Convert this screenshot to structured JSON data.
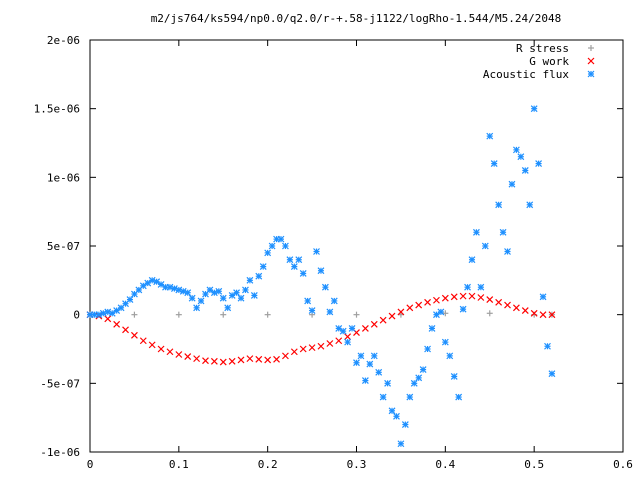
{
  "chart_data": {
    "type": "scatter",
    "title": "m2/js764/ks594/np0.0/q2.0/r-+.58-j1122/logRho-1.544/M5.24/2048",
    "xlabel": "",
    "ylabel": "",
    "xlim": [
      0,
      0.6
    ],
    "ylim": [
      -1e-06,
      2e-06
    ],
    "x_ticks": [
      "0",
      "0.1",
      "0.2",
      "0.3",
      "0.4",
      "0.5",
      "0.6"
    ],
    "y_ticks": [
      "-1e-06",
      "-5e-07",
      "0",
      "5e-07",
      "1e-06",
      "1.5e-06",
      "2e-06"
    ],
    "legend_position": "top-right",
    "grid": false,
    "series": [
      {
        "name": "R stress",
        "marker": "plus",
        "color": "#a0a0a0",
        "x": [
          0.0,
          0.05,
          0.1,
          0.15,
          0.2,
          0.25,
          0.3,
          0.35,
          0.4,
          0.45,
          0.5,
          0.52
        ],
        "y": [
          0,
          0,
          0,
          0,
          0,
          0,
          0,
          0,
          1e-08,
          1e-08,
          0,
          0
        ]
      },
      {
        "name": "G work",
        "marker": "cross",
        "color": "#ff0000",
        "x": [
          0.0,
          0.01,
          0.02,
          0.03,
          0.04,
          0.05,
          0.06,
          0.07,
          0.08,
          0.09,
          0.1,
          0.11,
          0.12,
          0.13,
          0.14,
          0.15,
          0.16,
          0.17,
          0.18,
          0.19,
          0.2,
          0.21,
          0.22,
          0.23,
          0.24,
          0.25,
          0.26,
          0.27,
          0.28,
          0.29,
          0.3,
          0.31,
          0.32,
          0.33,
          0.34,
          0.35,
          0.36,
          0.37,
          0.38,
          0.39,
          0.4,
          0.41,
          0.42,
          0.43,
          0.44,
          0.45,
          0.46,
          0.47,
          0.48,
          0.49,
          0.5,
          0.51,
          0.52
        ],
        "y": [
          0,
          -1e-08,
          -3e-08,
          -7e-08,
          -1.1e-07,
          -1.5e-07,
          -1.9e-07,
          -2.2e-07,
          -2.5e-07,
          -2.7e-07,
          -2.9e-07,
          -3.05e-07,
          -3.2e-07,
          -3.35e-07,
          -3.4e-07,
          -3.45e-07,
          -3.4e-07,
          -3.3e-07,
          -3.2e-07,
          -3.25e-07,
          -3.3e-07,
          -3.25e-07,
          -3e-07,
          -2.7e-07,
          -2.5e-07,
          -2.4e-07,
          -2.3e-07,
          -2.1e-07,
          -1.9e-07,
          -1.6e-07,
          -1.3e-07,
          -1e-07,
          -7e-08,
          -4e-08,
          -1e-08,
          2e-08,
          5e-08,
          7e-08,
          9e-08,
          1.05e-07,
          1.2e-07,
          1.3e-07,
          1.35e-07,
          1.35e-07,
          1.25e-07,
          1.1e-07,
          9e-08,
          7e-08,
          5e-08,
          3e-08,
          1e-08,
          0,
          0
        ]
      },
      {
        "name": "Acoustic flux",
        "marker": "star",
        "color": "#1e90ff",
        "x": [
          0.0,
          0.005,
          0.01,
          0.015,
          0.02,
          0.025,
          0.03,
          0.035,
          0.04,
          0.045,
          0.05,
          0.055,
          0.06,
          0.065,
          0.07,
          0.075,
          0.08,
          0.085,
          0.09,
          0.095,
          0.1,
          0.105,
          0.11,
          0.115,
          0.12,
          0.125,
          0.13,
          0.135,
          0.14,
          0.145,
          0.15,
          0.155,
          0.16,
          0.165,
          0.17,
          0.175,
          0.18,
          0.185,
          0.19,
          0.195,
          0.2,
          0.205,
          0.21,
          0.215,
          0.22,
          0.225,
          0.23,
          0.235,
          0.24,
          0.245,
          0.25,
          0.255,
          0.26,
          0.265,
          0.27,
          0.275,
          0.28,
          0.285,
          0.29,
          0.295,
          0.3,
          0.305,
          0.31,
          0.315,
          0.32,
          0.325,
          0.33,
          0.335,
          0.34,
          0.345,
          0.35,
          0.355,
          0.36,
          0.365,
          0.37,
          0.375,
          0.38,
          0.385,
          0.39,
          0.395,
          0.4,
          0.405,
          0.41,
          0.415,
          0.42,
          0.425,
          0.43,
          0.435,
          0.44,
          0.445,
          0.45,
          0.455,
          0.46,
          0.465,
          0.47,
          0.475,
          0.48,
          0.485,
          0.49,
          0.495,
          0.5,
          0.505,
          0.51,
          0.515,
          0.52
        ],
        "y": [
          0,
          0,
          0,
          1e-08,
          2e-08,
          1e-08,
          3e-08,
          5e-08,
          8e-08,
          1.1e-07,
          1.5e-07,
          1.8e-07,
          2.1e-07,
          2.3e-07,
          2.5e-07,
          2.4e-07,
          2.2e-07,
          2e-07,
          2e-07,
          1.9e-07,
          1.8e-07,
          1.7e-07,
          1.6e-07,
          1.2e-07,
          5e-08,
          1e-07,
          1.5e-07,
          1.8e-07,
          1.6e-07,
          1.7e-07,
          1.2e-07,
          5e-08,
          1.4e-07,
          1.6e-07,
          1.2e-07,
          1.8e-07,
          2.5e-07,
          1.4e-07,
          2.8e-07,
          3.5e-07,
          4.5e-07,
          5e-07,
          5.5e-07,
          5.5e-07,
          5e-07,
          4e-07,
          3.5e-07,
          4e-07,
          3e-07,
          1e-07,
          3e-08,
          4.6e-07,
          3.2e-07,
          2e-07,
          2e-08,
          1e-07,
          -1e-07,
          -1.2e-07,
          -2e-07,
          -1e-07,
          -3.5e-07,
          -3e-07,
          -4.8e-07,
          -3.6e-07,
          -3e-07,
          -4.2e-07,
          -6e-07,
          -5e-07,
          -7e-07,
          -7.4e-07,
          -9.4e-07,
          -8e-07,
          -6e-07,
          -5e-07,
          -4.6e-07,
          -4e-07,
          -2.5e-07,
          -1e-07,
          0,
          2e-08,
          -2e-07,
          -3e-07,
          -4.5e-07,
          -6e-07,
          4e-08,
          2e-07,
          4e-07,
          6e-07,
          2e-07,
          5e-07,
          1.3e-06,
          1.1e-06,
          8e-07,
          6e-07,
          4.6e-07,
          9.5e-07,
          1.2e-06,
          1.15e-06,
          1.05e-06,
          8e-07,
          1.5e-06,
          1.1e-06,
          1.3e-07,
          -2.3e-07,
          -4.3e-07
        ]
      }
    ]
  }
}
